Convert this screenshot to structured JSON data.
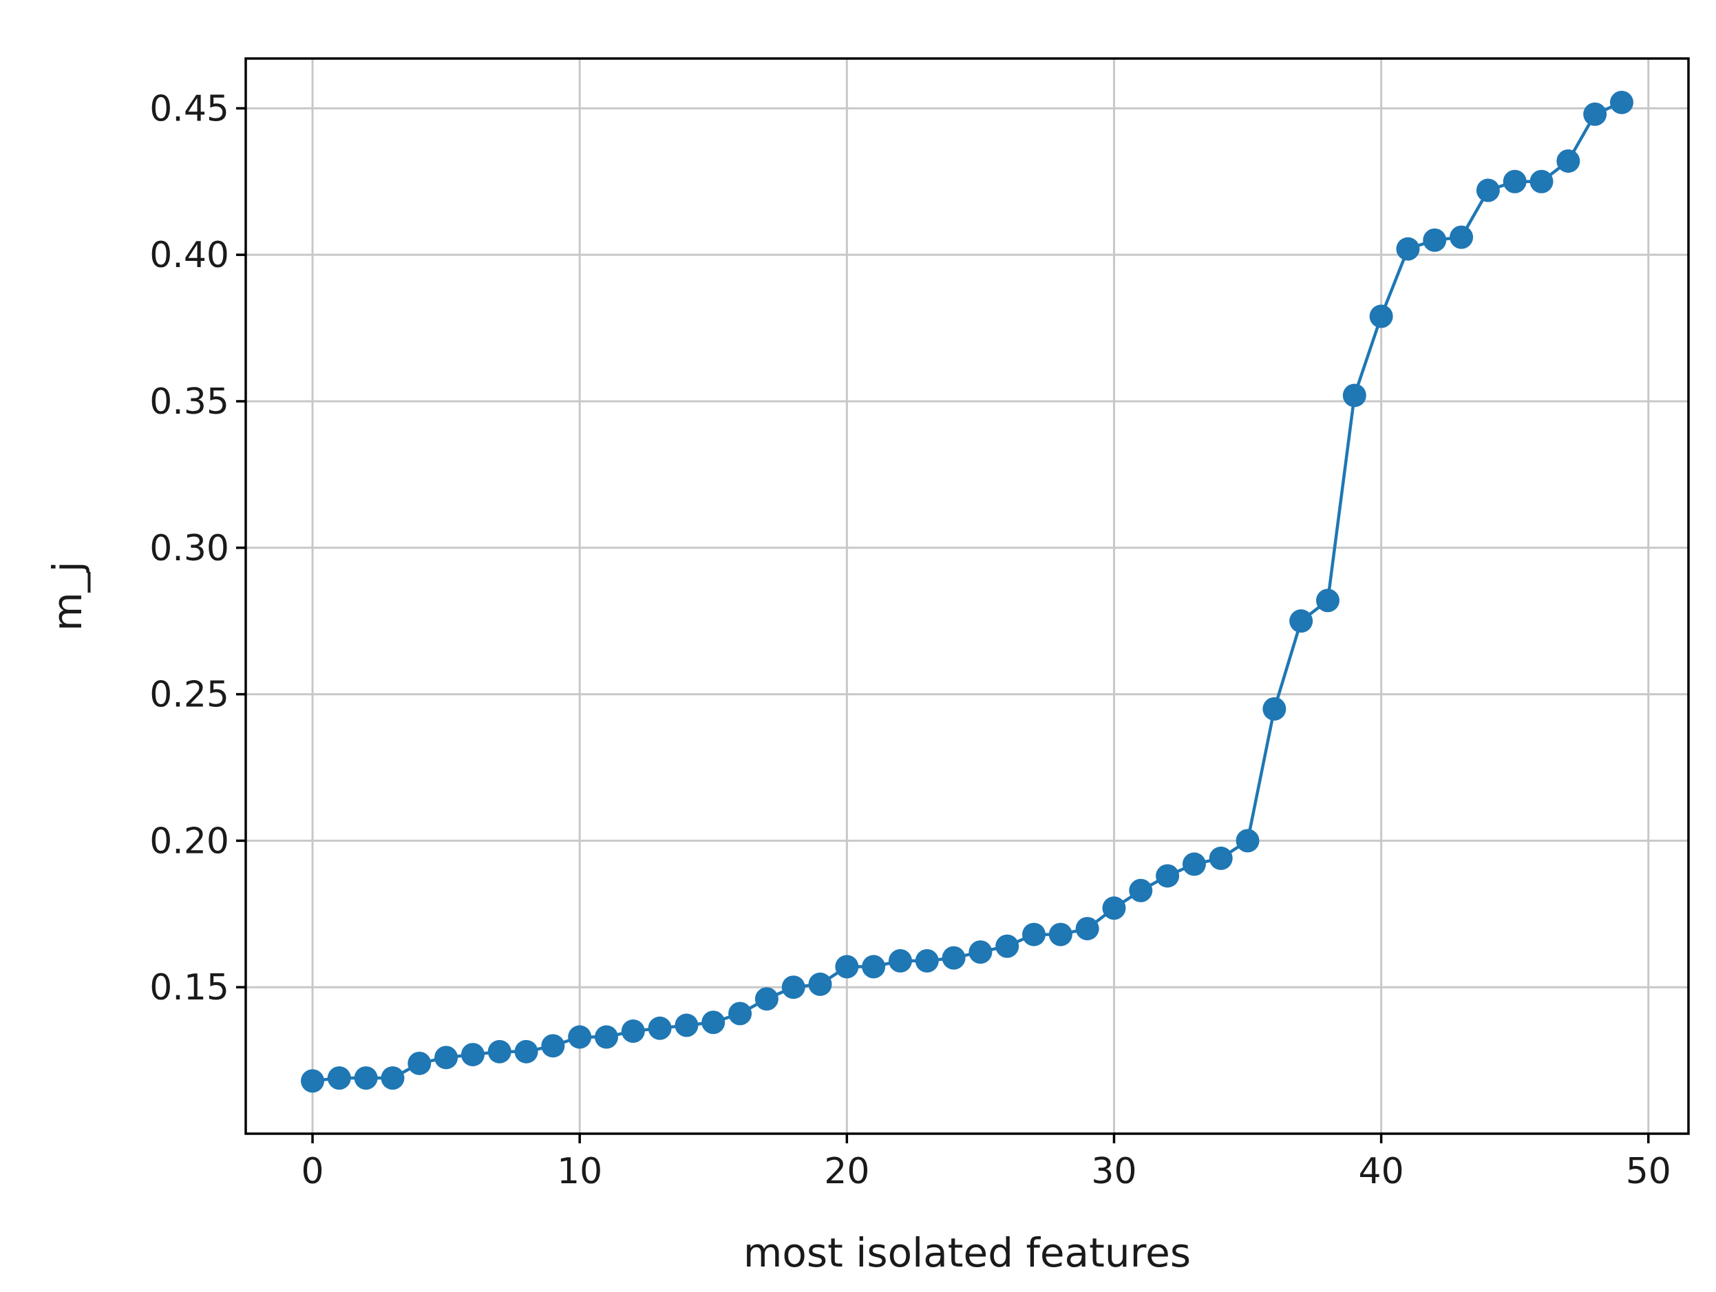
{
  "chart_data": {
    "type": "line",
    "title": "",
    "xlabel": "most isolated features",
    "ylabel": "m_j",
    "xlim": [
      -2.5,
      51.5
    ],
    "ylim": [
      0.1,
      0.467
    ],
    "xticks": [
      0,
      10,
      20,
      30,
      40,
      50
    ],
    "yticks": [
      0.15,
      0.2,
      0.25,
      0.3,
      0.35,
      0.4,
      0.45
    ],
    "xtick_labels": [
      "0",
      "10",
      "20",
      "30",
      "40",
      "50"
    ],
    "ytick_labels": [
      "0.15",
      "0.20",
      "0.25",
      "0.30",
      "0.35",
      "0.40",
      "0.45"
    ],
    "grid": true,
    "series": [
      {
        "color": "#1f77b4",
        "marker": "circle",
        "x": [
          0,
          1,
          2,
          3,
          4,
          5,
          6,
          7,
          8,
          9,
          10,
          11,
          12,
          13,
          14,
          15,
          16,
          17,
          18,
          19,
          20,
          21,
          22,
          23,
          24,
          25,
          26,
          27,
          28,
          29,
          30,
          31,
          32,
          33,
          34,
          35,
          36,
          37,
          38,
          39,
          40,
          41,
          42,
          43,
          44,
          45,
          46,
          47,
          48,
          49
        ],
        "y": [
          0.118,
          0.119,
          0.119,
          0.119,
          0.124,
          0.126,
          0.127,
          0.128,
          0.128,
          0.13,
          0.133,
          0.133,
          0.135,
          0.136,
          0.137,
          0.138,
          0.141,
          0.146,
          0.15,
          0.151,
          0.157,
          0.157,
          0.159,
          0.159,
          0.16,
          0.162,
          0.164,
          0.168,
          0.168,
          0.17,
          0.177,
          0.183,
          0.188,
          0.192,
          0.194,
          0.2,
          0.245,
          0.275,
          0.282,
          0.352,
          0.379,
          0.402,
          0.405,
          0.406,
          0.422,
          0.425,
          0.425,
          0.432,
          0.448,
          0.452
        ]
      }
    ]
  }
}
